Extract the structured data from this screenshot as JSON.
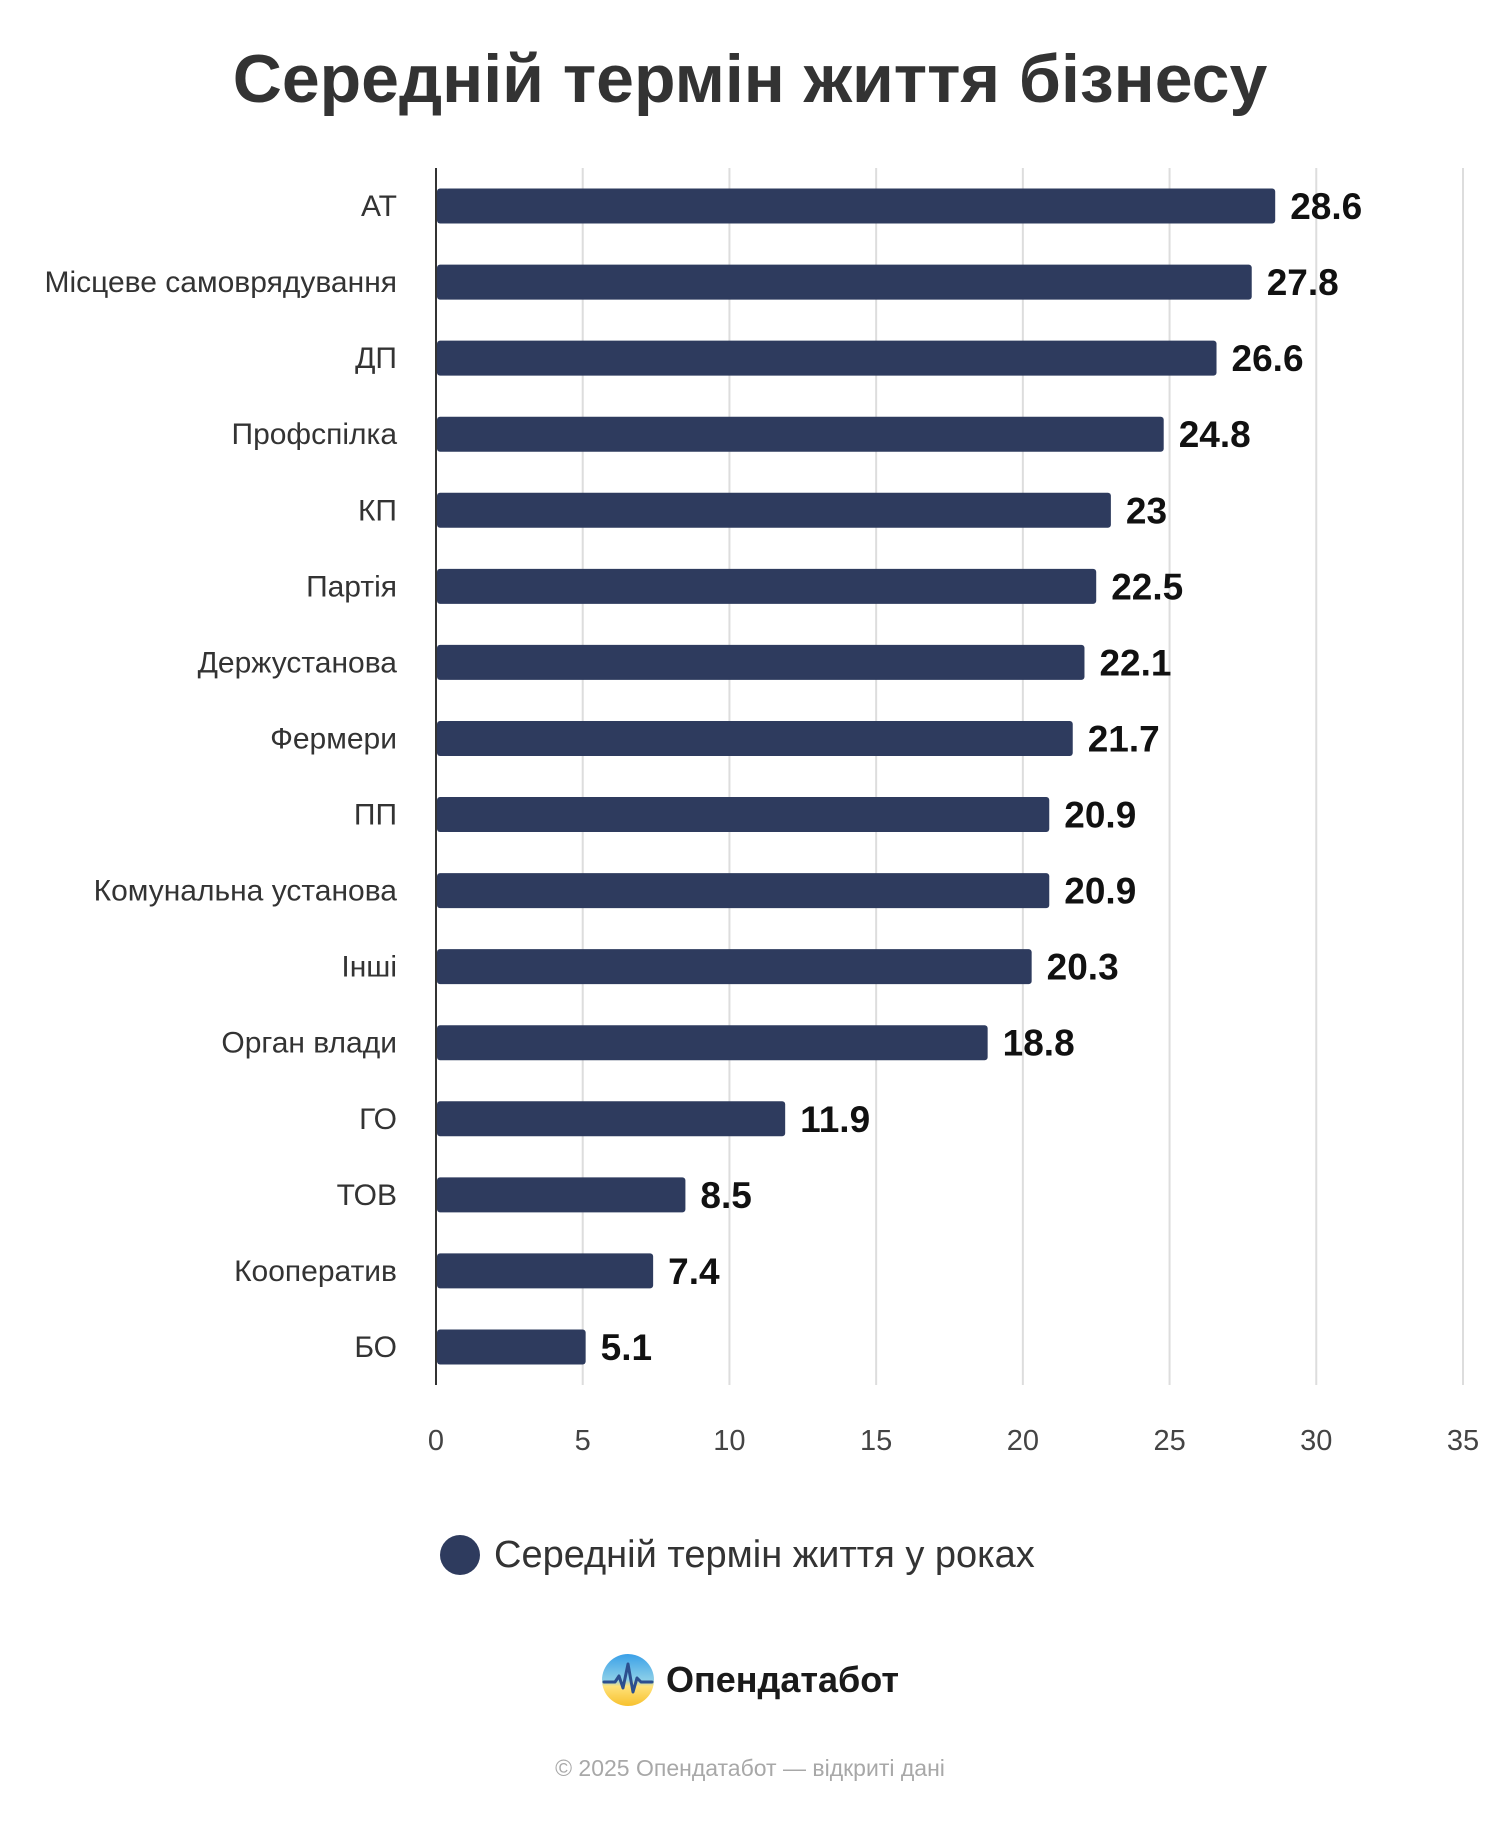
{
  "title": "Середній термін життя бізнесу",
  "chart_data": {
    "type": "bar",
    "orientation": "horizontal",
    "title": "Середній термін життя бізнесу",
    "categories": [
      "АТ",
      "Місцеве самоврядування",
      "ДП",
      "Профспілка",
      "КП",
      "Партія",
      "Держустанова",
      "Фермери",
      "ПП",
      "Комунальна установа",
      "Інші",
      "Орган влади",
      "ГО",
      "ТОВ",
      "Кооператив",
      "БО"
    ],
    "series": [
      {
        "name": "Середній термін життя у роках",
        "values": [
          28.6,
          27.8,
          26.6,
          24.8,
          23,
          22.5,
          22.1,
          21.7,
          20.9,
          20.9,
          20.3,
          18.8,
          11.9,
          8.5,
          7.4,
          5.1
        ],
        "color": "#2e3b5e"
      }
    ],
    "x_ticks": [
      "0",
      "5",
      "10",
      "15",
      "20",
      "25",
      "30",
      "35"
    ],
    "xlim": [
      0,
      35
    ],
    "xlabel": "",
    "ylabel": "",
    "grid": true,
    "legend_position": "bottom-center"
  },
  "legend": {
    "label": "Середній термін життя у роках",
    "color": "#2e3b5e"
  },
  "brand": {
    "name": "Опендатабот",
    "logo_icon": "opendatabot-logo-icon"
  },
  "footer": {
    "copyright": "© 2025 Опендатабот — відкриті дані"
  }
}
